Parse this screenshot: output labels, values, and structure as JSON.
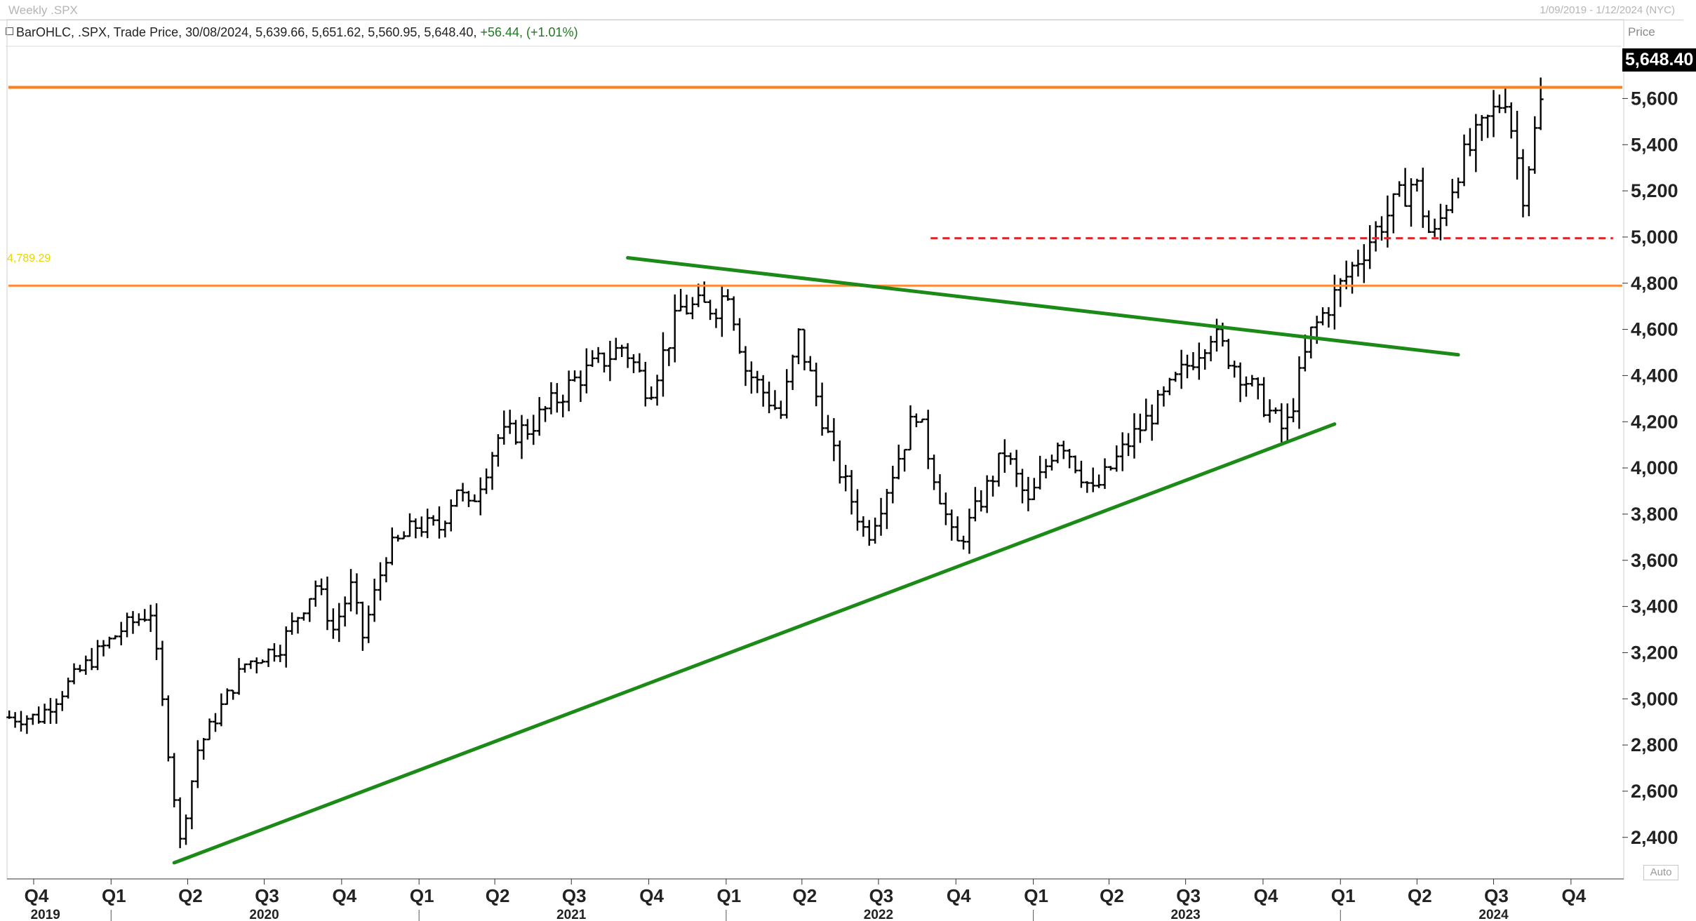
{
  "header": {
    "title": "Weekly .SPX",
    "date_range": "1/09/2019 - 1/12/2024 (NYC)",
    "info_prefix": "BarOHLC, .SPX, Trade Price, 30/08/2024, 5,639.66, 5,651.62, 5,560.95, 5,648.40,",
    "info_change": "+56.44, (+1.01%)"
  },
  "axis": {
    "price_title": "Price",
    "auto_label": "Auto",
    "last_price_label": "5,648.40",
    "level_label": "4,789.29"
  },
  "chart_data": {
    "type": "ohlc",
    "symbol": ".SPX",
    "frequency": "weekly",
    "ylim": [
      2220,
      5820
    ],
    "y_ticks": [
      2400,
      2600,
      2800,
      3000,
      3200,
      3400,
      3600,
      3800,
      4000,
      4200,
      4400,
      4600,
      4800,
      5000,
      5200,
      5400,
      5600
    ],
    "y_tick_labels": [
      "2,400",
      "2,600",
      "2,800",
      "3,000",
      "3,200",
      "3,400",
      "3,600",
      "3,800",
      "4,000",
      "4,200",
      "4,400",
      "4,600",
      "4,800",
      "5,000",
      "5,200",
      "5,400",
      "5,600"
    ],
    "x_quarter_labels": [
      {
        "label": "Q4",
        "date": "2019-10-01"
      },
      {
        "label": "Q1",
        "date": "2020-01-01"
      },
      {
        "label": "Q2",
        "date": "2020-04-01"
      },
      {
        "label": "Q3",
        "date": "2020-07-01"
      },
      {
        "label": "Q4",
        "date": "2020-10-01"
      },
      {
        "label": "Q1",
        "date": "2021-01-01"
      },
      {
        "label": "Q2",
        "date": "2021-04-01"
      },
      {
        "label": "Q3",
        "date": "2021-07-01"
      },
      {
        "label": "Q4",
        "date": "2021-10-01"
      },
      {
        "label": "Q1",
        "date": "2022-01-01"
      },
      {
        "label": "Q2",
        "date": "2022-04-01"
      },
      {
        "label": "Q3",
        "date": "2022-07-01"
      },
      {
        "label": "Q4",
        "date": "2022-10-01"
      },
      {
        "label": "Q1",
        "date": "2023-01-01"
      },
      {
        "label": "Q2",
        "date": "2023-04-01"
      },
      {
        "label": "Q3",
        "date": "2023-07-01"
      },
      {
        "label": "Q4",
        "date": "2023-10-01"
      },
      {
        "label": "Q1",
        "date": "2024-01-01"
      },
      {
        "label": "Q2",
        "date": "2024-04-01"
      },
      {
        "label": "Q3",
        "date": "2024-07-01"
      },
      {
        "label": "Q4",
        "date": "2024-10-01"
      }
    ],
    "x_year_labels": [
      {
        "label": "2019",
        "date": "2019-10-15"
      },
      {
        "label": "2020",
        "date": "2020-07-01"
      },
      {
        "label": "2021",
        "date": "2021-07-01"
      },
      {
        "label": "2022",
        "date": "2022-07-01"
      },
      {
        "label": "2023",
        "date": "2023-07-01"
      },
      {
        "label": "2024",
        "date": "2024-07-01"
      }
    ],
    "x_year_boundaries": [
      "2020-01-01",
      "2021-01-01",
      "2022-01-01",
      "2023-01-01",
      "2024-01-01"
    ],
    "x_range": [
      "2019-09-01",
      "2024-12-01"
    ],
    "anchors": [
      [
        "2019-09-02",
        2920
      ],
      [
        "2019-10-07",
        2920
      ],
      [
        "2019-11-25",
        3120
      ],
      [
        "2020-01-13",
        3300
      ],
      [
        "2020-02-17",
        3380
      ],
      [
        "2020-03-09",
        2780
      ],
      [
        "2020-03-23",
        2380
      ],
      [
        "2020-04-13",
        2780
      ],
      [
        "2020-06-08",
        3150
      ],
      [
        "2020-07-20",
        3230
      ],
      [
        "2020-09-01",
        3500
      ],
      [
        "2020-09-21",
        3300
      ],
      [
        "2020-10-12",
        3480
      ],
      [
        "2020-10-26",
        3270
      ],
      [
        "2020-11-23",
        3630
      ],
      [
        "2020-12-28",
        3750
      ],
      [
        "2021-01-25",
        3740
      ],
      [
        "2021-02-15",
        3920
      ],
      [
        "2021-03-01",
        3820
      ],
      [
        "2021-04-05",
        4130
      ],
      [
        "2021-05-10",
        4170
      ],
      [
        "2021-07-05",
        4380
      ],
      [
        "2021-09-01",
        4530
      ],
      [
        "2021-10-01",
        4330
      ],
      [
        "2021-11-08",
        4690
      ],
      [
        "2021-12-20",
        4700
      ],
      [
        "2022-01-03",
        4780
      ],
      [
        "2022-01-24",
        4430
      ],
      [
        "2022-03-07",
        4230
      ],
      [
        "2022-03-28",
        4570
      ],
      [
        "2022-05-09",
        4050
      ],
      [
        "2022-06-17",
        3700
      ],
      [
        "2022-07-04",
        3850
      ],
      [
        "2022-08-15",
        4250
      ],
      [
        "2022-09-30",
        3650
      ],
      [
        "2022-10-17",
        3760
      ],
      [
        "2022-11-28",
        4070
      ],
      [
        "2022-12-26",
        3840
      ],
      [
        "2023-02-01",
        4140
      ],
      [
        "2023-03-13",
        3890
      ],
      [
        "2023-04-28",
        4130
      ],
      [
        "2023-05-30",
        4270
      ],
      [
        "2023-07-31",
        4590
      ],
      [
        "2023-10-27",
        4150
      ],
      [
        "2023-11-27",
        4580
      ],
      [
        "2023-12-29",
        4770
      ],
      [
        "2024-02-12",
        5030
      ],
      [
        "2024-03-29",
        5250
      ],
      [
        "2024-04-19",
        4970
      ],
      [
        "2024-05-20",
        5300
      ],
      [
        "2024-07-15",
        5620
      ],
      [
        "2024-08-05",
        5200
      ],
      [
        "2024-08-30",
        5648.4
      ]
    ],
    "last_bar": {
      "date": "2024-08-30",
      "open": 5639.66,
      "high": 5651.62,
      "low": 5560.95,
      "close": 5648.4,
      "change": 56.44,
      "change_pct": 1.01
    },
    "horizontal_lines": [
      {
        "value": 5648.4,
        "color": "#ff7f1a",
        "style": "solid",
        "start": "2019-09-01",
        "end": "2024-12-01"
      },
      {
        "value": 4789.29,
        "color": "#ff8a33",
        "style": "solid",
        "start": "2019-09-01",
        "end": "2024-12-01"
      },
      {
        "value": 4995,
        "color": "#e0242a",
        "style": "dashed",
        "start": "2022-09-01",
        "end": "2024-11-20"
      }
    ],
    "trend_lines": [
      {
        "color": "#1c8a16",
        "from": [
          "2020-03-16",
          2290
        ],
        "to": [
          "2023-12-25",
          4190
        ]
      },
      {
        "color": "#1c8a16",
        "from": [
          "2021-09-06",
          4910
        ],
        "to": [
          "2024-05-20",
          4490
        ]
      }
    ],
    "colors": {
      "bars": "#000000",
      "last_price_bg": "#000000",
      "level_label": "#e6d800"
    }
  }
}
